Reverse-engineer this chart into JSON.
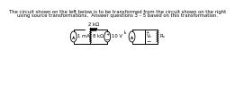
{
  "title_line1": "The circuit shown on the left below is to be transformed from the circuit shown on the right",
  "title_line2": "using source transformations.  Answer questions 3 – 5 based on this transformation.",
  "title_fontsize": 3.8,
  "bg_color": "#ffffff",
  "left_circuit": {
    "resistor_top_label": "2 kΩ",
    "resistor_left_label": "8 kΩ",
    "current_source_label": "1 mA",
    "voltage_source_label": "10 V"
  },
  "right_circuit": {
    "current_source_label": "Iₛ",
    "voltage_label": "Vₓ",
    "resistor_label": "Rₓ"
  }
}
